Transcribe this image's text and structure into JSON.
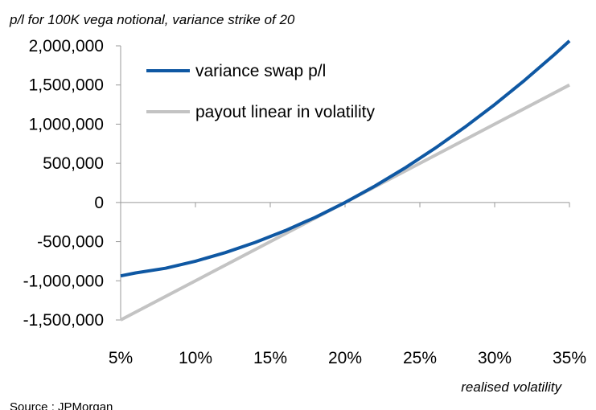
{
  "chart_data": {
    "type": "line",
    "title": "p/l for 100K vega notional, variance strike of 20",
    "xlabel": "realised volatility",
    "ylabel": "",
    "xlim": [
      5,
      35
    ],
    "ylim": [
      -1500000,
      2000000
    ],
    "x_ticks": [
      "5%",
      "10%",
      "15%",
      "20%",
      "25%",
      "30%",
      "35%"
    ],
    "y_ticks": [
      "2,000,000",
      "1,500,000",
      "1,000,000",
      "500,000",
      "0",
      "-500,000",
      "-1,000,000",
      "-1,500,000"
    ],
    "x_tick_values": [
      5,
      10,
      15,
      20,
      25,
      30,
      35
    ],
    "y_tick_values": [
      2000000,
      1500000,
      1000000,
      500000,
      0,
      -500000,
      -1000000,
      -1500000
    ],
    "legend_position": "top-left",
    "grid": false,
    "series": [
      {
        "name": "variance swap p/l",
        "color": "#0f58a3",
        "x": [
          5,
          6,
          8,
          10,
          12,
          14,
          16,
          18,
          20,
          22,
          24,
          26,
          28,
          30,
          32,
          34,
          35
        ],
        "y": [
          -937500,
          -900000,
          -840000,
          -750000,
          -640000,
          -510000,
          -360000,
          -190000,
          0,
          210000,
          440000,
          690000,
          960000,
          1250000,
          1560000,
          1890000,
          2062500
        ]
      },
      {
        "name": "payout linear in volatility",
        "color": "#c3c3c3",
        "x": [
          5,
          35
        ],
        "y": [
          -1500000,
          1500000
        ]
      }
    ]
  },
  "footer": {
    "source": "Source : JPMorgan"
  }
}
